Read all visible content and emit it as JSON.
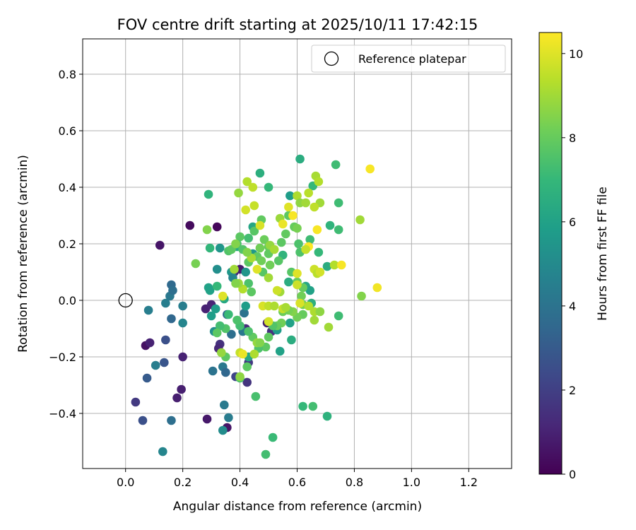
{
  "chart_data": {
    "type": "scatter",
    "title": "FOV centre drift starting at 2025/10/11 17:42:15",
    "xlabel": "Angular distance from reference (arcmin)",
    "ylabel": "Rotation from reference (arcmin)",
    "xlim": [
      -0.15,
      1.35
    ],
    "ylim": [
      -0.595,
      0.925
    ],
    "xticks": [
      0.0,
      0.2,
      0.4,
      0.6,
      0.8,
      1.0,
      1.2
    ],
    "xtick_labels": [
      "0.0",
      "0.2",
      "0.4",
      "0.6",
      "0.8",
      "1.0",
      "1.2"
    ],
    "yticks": [
      -0.4,
      -0.2,
      0.0,
      0.2,
      0.4,
      0.6,
      0.8
    ],
    "ytick_labels": [
      "−0.4",
      "−0.2",
      "0.0",
      "0.2",
      "0.4",
      "0.6",
      "0.8"
    ],
    "grid": true,
    "legend": {
      "placement": "top-right",
      "entries": [
        "Reference platepar"
      ]
    },
    "reference_point": {
      "x": 0.0,
      "y": 0.0,
      "marker": "hollow-circle"
    },
    "colorbar": {
      "label": "Hours from first FF file",
      "min": 0,
      "max": 10.5,
      "ticks": [
        0,
        2,
        4,
        6,
        8,
        10
      ],
      "tick_labels": [
        "0",
        "2",
        "4",
        "6",
        "8",
        "10"
      ],
      "colormap": "viridis"
    },
    "colormap_stops": [
      "#440154",
      "#482878",
      "#3e4989",
      "#31688e",
      "#26828e",
      "#1f9e89",
      "#35b779",
      "#6ece58",
      "#b5de2b",
      "#fde725"
    ],
    "points": [
      {
        "x": 0.12,
        "y": 0.195,
        "c": 0.6
      },
      {
        "x": 0.225,
        "y": 0.265,
        "c": 0.3
      },
      {
        "x": 0.32,
        "y": 0.26,
        "c": 0.2
      },
      {
        "x": 0.07,
        "y": -0.16,
        "c": 0.5
      },
      {
        "x": 0.085,
        "y": -0.15,
        "c": 1.0
      },
      {
        "x": 0.2,
        "y": -0.2,
        "c": 1.0
      },
      {
        "x": 0.195,
        "y": -0.315,
        "c": 0.9
      },
      {
        "x": 0.18,
        "y": -0.345,
        "c": 0.9
      },
      {
        "x": 0.285,
        "y": -0.42,
        "c": 0.7
      },
      {
        "x": 0.035,
        "y": -0.36,
        "c": 1.8
      },
      {
        "x": 0.28,
        "y": -0.03,
        "c": 1.0
      },
      {
        "x": 0.3,
        "y": -0.015,
        "c": 1.1
      },
      {
        "x": 0.355,
        "y": -0.45,
        "c": 0.6
      },
      {
        "x": 0.33,
        "y": -0.155,
        "c": 1.5
      },
      {
        "x": 0.325,
        "y": -0.17,
        "c": 1.2
      },
      {
        "x": 0.4,
        "y": 0.11,
        "c": 0.8
      },
      {
        "x": 0.385,
        "y": -0.27,
        "c": 2.2
      },
      {
        "x": 0.425,
        "y": -0.29,
        "c": 1.6
      },
      {
        "x": 0.42,
        "y": -0.1,
        "c": 1.4
      },
      {
        "x": 0.495,
        "y": -0.08,
        "c": 0.9
      },
      {
        "x": 0.51,
        "y": -0.11,
        "c": 1.5
      },
      {
        "x": 0.43,
        "y": -0.22,
        "c": 1.8
      },
      {
        "x": 0.38,
        "y": 0.1,
        "c": 1.3
      },
      {
        "x": 0.06,
        "y": -0.425,
        "c": 2.6
      },
      {
        "x": 0.075,
        "y": -0.275,
        "c": 3.0
      },
      {
        "x": 0.135,
        "y": -0.22,
        "c": 2.8
      },
      {
        "x": 0.14,
        "y": -0.14,
        "c": 2.6
      },
      {
        "x": 0.16,
        "y": -0.065,
        "c": 3.5
      },
      {
        "x": 0.16,
        "y": -0.425,
        "c": 3.8
      },
      {
        "x": 0.13,
        "y": -0.535,
        "c": 4.8
      },
      {
        "x": 0.08,
        "y": -0.035,
        "c": 4.5
      },
      {
        "x": 0.105,
        "y": -0.23,
        "c": 4.5
      },
      {
        "x": 0.14,
        "y": -0.01,
        "c": 4.5
      },
      {
        "x": 0.155,
        "y": 0.015,
        "c": 4.2
      },
      {
        "x": 0.16,
        "y": 0.055,
        "c": 3.6
      },
      {
        "x": 0.165,
        "y": 0.035,
        "c": 3.8
      },
      {
        "x": 0.2,
        "y": -0.02,
        "c": 4.5
      },
      {
        "x": 0.2,
        "y": -0.08,
        "c": 4.8
      },
      {
        "x": 0.31,
        "y": -0.11,
        "c": 5.2
      },
      {
        "x": 0.305,
        "y": -0.25,
        "c": 4.0
      },
      {
        "x": 0.34,
        "y": -0.235,
        "c": 4.2
      },
      {
        "x": 0.35,
        "y": -0.255,
        "c": 3.5
      },
      {
        "x": 0.345,
        "y": -0.37,
        "c": 4.3
      },
      {
        "x": 0.36,
        "y": -0.415,
        "c": 4.4
      },
      {
        "x": 0.34,
        "y": -0.46,
        "c": 5.1
      },
      {
        "x": 0.355,
        "y": -0.05,
        "c": 3.5
      },
      {
        "x": 0.37,
        "y": -0.12,
        "c": 3.8
      },
      {
        "x": 0.415,
        "y": -0.045,
        "c": 4.0
      },
      {
        "x": 0.41,
        "y": -0.11,
        "c": 4.2
      },
      {
        "x": 0.32,
        "y": 0.11,
        "c": 5.2
      },
      {
        "x": 0.37,
        "y": 0.1,
        "c": 5.5
      },
      {
        "x": 0.375,
        "y": 0.08,
        "c": 4.8
      },
      {
        "x": 0.29,
        "y": 0.045,
        "c": 6.0
      },
      {
        "x": 0.295,
        "y": 0.035,
        "c": 6.0
      },
      {
        "x": 0.315,
        "y": -0.03,
        "c": 5.8
      },
      {
        "x": 0.3,
        "y": -0.055,
        "c": 5.8
      },
      {
        "x": 0.33,
        "y": 0.185,
        "c": 5.5
      },
      {
        "x": 0.39,
        "y": 0.19,
        "c": 6.4
      },
      {
        "x": 0.345,
        "y": 0.005,
        "c": 6.3
      },
      {
        "x": 0.29,
        "y": 0.375,
        "c": 6.8
      },
      {
        "x": 0.295,
        "y": 0.185,
        "c": 6.9
      },
      {
        "x": 0.42,
        "y": -0.02,
        "c": 5.8
      },
      {
        "x": 0.445,
        "y": 0.26,
        "c": 6.2
      },
      {
        "x": 0.47,
        "y": 0.45,
        "c": 6.6
      },
      {
        "x": 0.43,
        "y": -0.2,
        "c": 6.2
      },
      {
        "x": 0.53,
        "y": -0.105,
        "c": 5.7
      },
      {
        "x": 0.54,
        "y": -0.18,
        "c": 6.0
      },
      {
        "x": 0.445,
        "y": 0.165,
        "c": 5.6
      },
      {
        "x": 0.42,
        "y": 0.1,
        "c": 5.5
      },
      {
        "x": 0.5,
        "y": 0.4,
        "c": 7.0
      },
      {
        "x": 0.575,
        "y": 0.37,
        "c": 5.8
      },
      {
        "x": 0.61,
        "y": 0.5,
        "c": 6.5
      },
      {
        "x": 0.55,
        "y": 0.16,
        "c": 6.8
      },
      {
        "x": 0.57,
        "y": 0.065,
        "c": 6.5
      },
      {
        "x": 0.575,
        "y": -0.08,
        "c": 6.0
      },
      {
        "x": 0.58,
        "y": -0.14,
        "c": 6.5
      },
      {
        "x": 0.63,
        "y": 0.05,
        "c": 6.2
      },
      {
        "x": 0.645,
        "y": 0.215,
        "c": 7.2
      },
      {
        "x": 0.655,
        "y": 0.405,
        "c": 7.0
      },
      {
        "x": 0.675,
        "y": 0.17,
        "c": 7.0
      },
      {
        "x": 0.645,
        "y": 0.035,
        "c": 6.0
      },
      {
        "x": 0.65,
        "y": -0.01,
        "c": 6.6
      },
      {
        "x": 0.62,
        "y": -0.375,
        "c": 7.0
      },
      {
        "x": 0.655,
        "y": -0.375,
        "c": 7.3
      },
      {
        "x": 0.705,
        "y": -0.41,
        "c": 6.7
      },
      {
        "x": 0.715,
        "y": 0.265,
        "c": 6.8
      },
      {
        "x": 0.705,
        "y": 0.12,
        "c": 6.5
      },
      {
        "x": 0.735,
        "y": 0.48,
        "c": 7.2
      },
      {
        "x": 0.745,
        "y": 0.25,
        "c": 7.2
      },
      {
        "x": 0.745,
        "y": 0.345,
        "c": 7.2
      },
      {
        "x": 0.745,
        "y": -0.055,
        "c": 7.2
      },
      {
        "x": 0.455,
        "y": -0.34,
        "c": 7.4
      },
      {
        "x": 0.515,
        "y": -0.485,
        "c": 7.1
      },
      {
        "x": 0.49,
        "y": -0.545,
        "c": 7.3
      },
      {
        "x": 0.35,
        "y": -0.2,
        "c": 7.8
      },
      {
        "x": 0.4,
        "y": -0.275,
        "c": 7.5
      },
      {
        "x": 0.425,
        "y": -0.235,
        "c": 7.8
      },
      {
        "x": 0.43,
        "y": 0.06,
        "c": 7.5
      },
      {
        "x": 0.44,
        "y": 0.03,
        "c": 7.8
      },
      {
        "x": 0.43,
        "y": 0.135,
        "c": 7.8
      },
      {
        "x": 0.4,
        "y": 0.225,
        "c": 7.8
      },
      {
        "x": 0.45,
        "y": 0.245,
        "c": 7.7
      },
      {
        "x": 0.475,
        "y": 0.285,
        "c": 7.9
      },
      {
        "x": 0.485,
        "y": 0.215,
        "c": 8.1
      },
      {
        "x": 0.5,
        "y": 0.19,
        "c": 8.0
      },
      {
        "x": 0.47,
        "y": 0.185,
        "c": 8.2
      },
      {
        "x": 0.46,
        "y": 0.155,
        "c": 7.9
      },
      {
        "x": 0.5,
        "y": 0.165,
        "c": 7.9
      },
      {
        "x": 0.475,
        "y": 0.14,
        "c": 8.2
      },
      {
        "x": 0.48,
        "y": 0.1,
        "c": 7.7
      },
      {
        "x": 0.505,
        "y": 0.125,
        "c": 8.2
      },
      {
        "x": 0.535,
        "y": 0.14,
        "c": 7.7
      },
      {
        "x": 0.545,
        "y": 0.205,
        "c": 7.8
      },
      {
        "x": 0.56,
        "y": 0.235,
        "c": 7.9
      },
      {
        "x": 0.57,
        "y": 0.3,
        "c": 7.8
      },
      {
        "x": 0.59,
        "y": 0.26,
        "c": 8.0
      },
      {
        "x": 0.6,
        "y": 0.255,
        "c": 8.3
      },
      {
        "x": 0.605,
        "y": 0.2,
        "c": 7.5
      },
      {
        "x": 0.61,
        "y": 0.17,
        "c": 7.5
      },
      {
        "x": 0.58,
        "y": 0.1,
        "c": 7.7
      },
      {
        "x": 0.6,
        "y": 0.065,
        "c": 8.0
      },
      {
        "x": 0.62,
        "y": 0.045,
        "c": 8.0
      },
      {
        "x": 0.615,
        "y": 0.015,
        "c": 8.2
      },
      {
        "x": 0.62,
        "y": -0.015,
        "c": 8.3
      },
      {
        "x": 0.62,
        "y": -0.05,
        "c": 8.0
      },
      {
        "x": 0.6,
        "y": -0.06,
        "c": 8.2
      },
      {
        "x": 0.585,
        "y": -0.04,
        "c": 8.5
      },
      {
        "x": 0.57,
        "y": -0.035,
        "c": 8.3
      },
      {
        "x": 0.55,
        "y": -0.04,
        "c": 8.1
      },
      {
        "x": 0.545,
        "y": -0.08,
        "c": 8.2
      },
      {
        "x": 0.53,
        "y": -0.09,
        "c": 8.0
      },
      {
        "x": 0.515,
        "y": -0.09,
        "c": 7.6
      },
      {
        "x": 0.5,
        "y": -0.13,
        "c": 7.9
      },
      {
        "x": 0.49,
        "y": -0.165,
        "c": 7.8
      },
      {
        "x": 0.465,
        "y": -0.17,
        "c": 7.5
      },
      {
        "x": 0.445,
        "y": -0.13,
        "c": 7.9
      },
      {
        "x": 0.43,
        "y": -0.11,
        "c": 7.5
      },
      {
        "x": 0.4,
        "y": -0.09,
        "c": 7.3
      },
      {
        "x": 0.39,
        "y": -0.07,
        "c": 7.5
      },
      {
        "x": 0.36,
        "y": -0.05,
        "c": 7.1
      },
      {
        "x": 0.35,
        "y": -0.1,
        "c": 7.6
      },
      {
        "x": 0.33,
        "y": -0.09,
        "c": 7.3
      },
      {
        "x": 0.32,
        "y": -0.115,
        "c": 7.8
      },
      {
        "x": 0.32,
        "y": 0.05,
        "c": 7.0
      },
      {
        "x": 0.36,
        "y": 0.175,
        "c": 7.6
      },
      {
        "x": 0.37,
        "y": 0.18,
        "c": 7.8
      },
      {
        "x": 0.39,
        "y": 0.2,
        "c": 7.4
      },
      {
        "x": 0.41,
        "y": 0.18,
        "c": 7.6
      },
      {
        "x": 0.43,
        "y": 0.22,
        "c": 7.3
      },
      {
        "x": 0.395,
        "y": 0.38,
        "c": 8.8
      },
      {
        "x": 0.425,
        "y": 0.42,
        "c": 9.3
      },
      {
        "x": 0.445,
        "y": 0.4,
        "c": 9.5
      },
      {
        "x": 0.42,
        "y": 0.32,
        "c": 9.8
      },
      {
        "x": 0.45,
        "y": 0.335,
        "c": 9.6
      },
      {
        "x": 0.47,
        "y": 0.265,
        "c": 9.9
      },
      {
        "x": 0.505,
        "y": 0.195,
        "c": 8.8
      },
      {
        "x": 0.52,
        "y": 0.18,
        "c": 9.1
      },
      {
        "x": 0.54,
        "y": 0.29,
        "c": 8.9
      },
      {
        "x": 0.55,
        "y": 0.27,
        "c": 10.2
      },
      {
        "x": 0.57,
        "y": 0.33,
        "c": 10.0
      },
      {
        "x": 0.585,
        "y": 0.3,
        "c": 10.4
      },
      {
        "x": 0.6,
        "y": 0.37,
        "c": 9.2
      },
      {
        "x": 0.61,
        "y": 0.345,
        "c": 8.7
      },
      {
        "x": 0.63,
        "y": 0.345,
        "c": 9.0
      },
      {
        "x": 0.64,
        "y": 0.38,
        "c": 9.4
      },
      {
        "x": 0.665,
        "y": 0.44,
        "c": 9.1
      },
      {
        "x": 0.675,
        "y": 0.42,
        "c": 9.3
      },
      {
        "x": 0.68,
        "y": 0.345,
        "c": 9.0
      },
      {
        "x": 0.66,
        "y": 0.33,
        "c": 9.5
      },
      {
        "x": 0.67,
        "y": 0.25,
        "c": 10.4
      },
      {
        "x": 0.64,
        "y": 0.19,
        "c": 10.5
      },
      {
        "x": 0.63,
        "y": 0.18,
        "c": 9.6
      },
      {
        "x": 0.66,
        "y": 0.11,
        "c": 9.7
      },
      {
        "x": 0.67,
        "y": 0.095,
        "c": 9.4
      },
      {
        "x": 0.68,
        "y": 0.1,
        "c": 9.8
      },
      {
        "x": 0.6,
        "y": 0.095,
        "c": 10.0
      },
      {
        "x": 0.6,
        "y": 0.055,
        "c": 9.7
      },
      {
        "x": 0.61,
        "y": -0.01,
        "c": 9.9
      },
      {
        "x": 0.64,
        "y": -0.02,
        "c": 9.3
      },
      {
        "x": 0.66,
        "y": -0.04,
        "c": 9.2
      },
      {
        "x": 0.66,
        "y": -0.07,
        "c": 9.0
      },
      {
        "x": 0.68,
        "y": -0.04,
        "c": 8.7
      },
      {
        "x": 0.71,
        "y": -0.095,
        "c": 9.0
      },
      {
        "x": 0.73,
        "y": 0.125,
        "c": 9.3
      },
      {
        "x": 0.755,
        "y": 0.125,
        "c": 10.4
      },
      {
        "x": 0.82,
        "y": 0.285,
        "c": 9.0
      },
      {
        "x": 0.825,
        "y": 0.015,
        "c": 8.5
      },
      {
        "x": 0.855,
        "y": 0.465,
        "c": 10.4
      },
      {
        "x": 0.88,
        "y": 0.045,
        "c": 10.3
      },
      {
        "x": 0.46,
        "y": 0.11,
        "c": 10.0
      },
      {
        "x": 0.48,
        "y": -0.02,
        "c": 9.9
      },
      {
        "x": 0.5,
        "y": -0.075,
        "c": 9.8
      },
      {
        "x": 0.5,
        "y": -0.02,
        "c": 9.5
      },
      {
        "x": 0.52,
        "y": -0.02,
        "c": 9.2
      },
      {
        "x": 0.54,
        "y": 0.03,
        "c": 9.0
      },
      {
        "x": 0.55,
        "y": -0.03,
        "c": 9.6
      },
      {
        "x": 0.56,
        "y": -0.025,
        "c": 9.1
      },
      {
        "x": 0.53,
        "y": 0.035,
        "c": 9.7
      },
      {
        "x": 0.5,
        "y": 0.08,
        "c": 9.0
      },
      {
        "x": 0.44,
        "y": 0.15,
        "c": 9.1
      },
      {
        "x": 0.41,
        "y": 0.04,
        "c": 9.3
      },
      {
        "x": 0.395,
        "y": 0.06,
        "c": 8.9
      },
      {
        "x": 0.385,
        "y": 0.06,
        "c": 8.5
      },
      {
        "x": 0.38,
        "y": 0.11,
        "c": 9.0
      },
      {
        "x": 0.34,
        "y": 0.015,
        "c": 10.0
      },
      {
        "x": 0.335,
        "y": -0.185,
        "c": 8.8
      },
      {
        "x": 0.4,
        "y": -0.185,
        "c": 9.6
      },
      {
        "x": 0.41,
        "y": -0.19,
        "c": 10.2
      },
      {
        "x": 0.4,
        "y": -0.27,
        "c": 8.7
      },
      {
        "x": 0.45,
        "y": -0.19,
        "c": 9.2
      },
      {
        "x": 0.46,
        "y": -0.15,
        "c": 8.8
      },
      {
        "x": 0.47,
        "y": -0.15,
        "c": 8.5
      },
      {
        "x": 0.285,
        "y": 0.25,
        "c": 8.5
      },
      {
        "x": 0.245,
        "y": 0.13,
        "c": 8.3
      },
      {
        "x": 0.385,
        "y": 0.2,
        "c": 8.5
      },
      {
        "x": 0.425,
        "y": 0.17,
        "c": 8.5
      }
    ]
  }
}
